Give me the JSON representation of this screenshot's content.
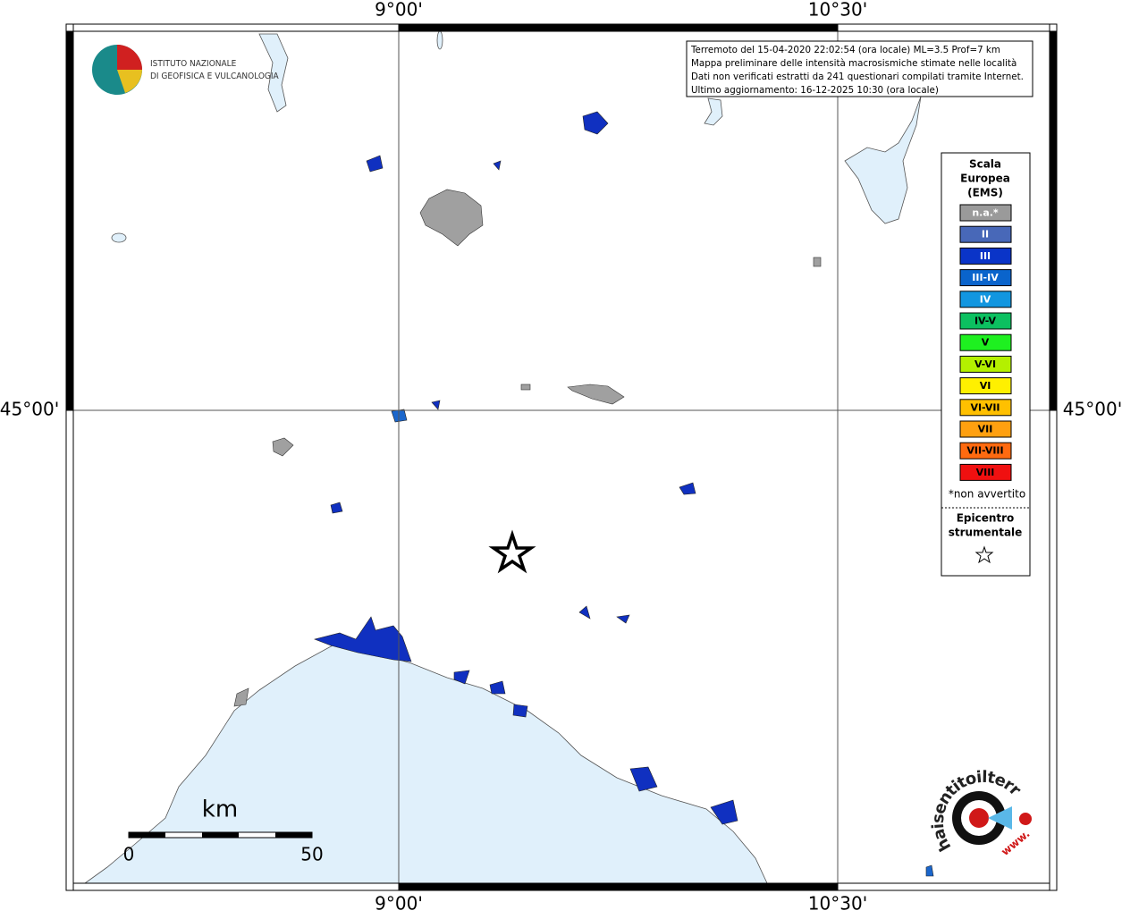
{
  "logo": {
    "lines": [
      "ISTITUTO NAZIONALE",
      "DI GEOFISICA E VULCANOLOGIA"
    ]
  },
  "info": {
    "lines": [
      "Terremoto del 15-04-2020 22:02:54 (ora locale) ML=3.5 Prof=7 km",
      "Mappa preliminare delle intensità macrosismiche stimate nelle località",
      "Dati non verificati estratti da 241 questionari compilati tramite Internet.",
      "Ultimo aggiornamento: 16-12-2025 10:30 (ora locale)"
    ]
  },
  "map": {
    "lon_labels": [
      "9°00'",
      "10°30'"
    ],
    "lat_labels": [
      "45°00'"
    ]
  },
  "legend": {
    "title_lines": [
      "Scala",
      "Europea",
      "(EMS)"
    ],
    "items": [
      {
        "label": "n.a.*",
        "color": "#9a9a9a",
        "text_color": "#ffffff"
      },
      {
        "label": "II",
        "color": "#4868b8",
        "text_color": "#ffffff"
      },
      {
        "label": "III",
        "color": "#0a34c8",
        "text_color": "#ffffff"
      },
      {
        "label": "III-IV",
        "color": "#0a64cc",
        "text_color": "#ffffff"
      },
      {
        "label": "IV",
        "color": "#1296e0",
        "text_color": "#ffffff"
      },
      {
        "label": "IV-V",
        "color": "#0cc060",
        "text_color": "#000000"
      },
      {
        "label": "V",
        "color": "#1ef020",
        "text_color": "#000000"
      },
      {
        "label": "V-VI",
        "color": "#b4f000",
        "text_color": "#000000"
      },
      {
        "label": "VI",
        "color": "#fff000",
        "text_color": "#000000"
      },
      {
        "label": "VI-VII",
        "color": "#ffc000",
        "text_color": "#000000"
      },
      {
        "label": "VII",
        "color": "#ffa010",
        "text_color": "#000000"
      },
      {
        "label": "VII-VIII",
        "color": "#ff6a10",
        "text_color": "#000000"
      },
      {
        "label": "VIII",
        "color": "#f01010",
        "text_color": "#000000"
      }
    ],
    "note": "*non avvertito",
    "epicenter_lines": [
      "Epicentro",
      "strumentale"
    ]
  },
  "scale_bar": {
    "unit": "km",
    "labels": [
      0,
      50
    ]
  },
  "site_logo": {
    "text": "haisentitoilterremoto.it",
    "www": "www."
  }
}
